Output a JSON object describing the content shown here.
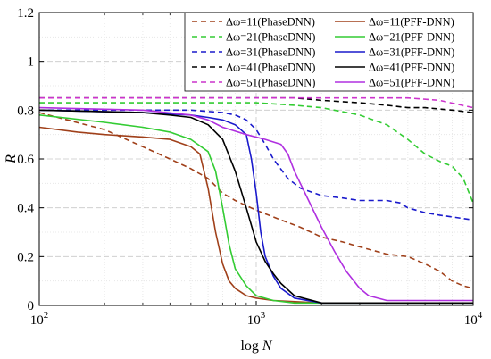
{
  "chart_data": {
    "type": "line",
    "xlabel": "log N",
    "xlabel_prefix": "log ",
    "xlabel_var": "N",
    "ylabel": "R",
    "x_scale": "log",
    "xlim": [
      100,
      10000
    ],
    "ylim": [
      0,
      1.2
    ],
    "grid": true,
    "legend_position": "top-right",
    "x_ticks": [
      {
        "value": 100,
        "base": "10",
        "exp": "2"
      },
      {
        "value": 1000,
        "base": "10",
        "exp": "3"
      },
      {
        "value": 10000,
        "base": "10",
        "exp": "4"
      }
    ],
    "y_ticks": [
      {
        "value": 0,
        "label": "0"
      },
      {
        "value": 0.2,
        "label": "0.2"
      },
      {
        "value": 0.4,
        "label": "0.4"
      },
      {
        "value": 0.6,
        "label": "0.6"
      },
      {
        "value": 0.8,
        "label": "0.8"
      },
      {
        "value": 1.0,
        "label": "1"
      },
      {
        "value": 1.2,
        "label": "1.2"
      }
    ],
    "series": [
      {
        "name": "Δω=11(PhaseDNN)",
        "color": "#a0401a",
        "dash": "dashed",
        "points": [
          [
            100,
            0.79
          ],
          [
            200,
            0.72
          ],
          [
            300,
            0.65
          ],
          [
            400,
            0.6
          ],
          [
            500,
            0.56
          ],
          [
            600,
            0.52
          ],
          [
            700,
            0.46
          ],
          [
            800,
            0.43
          ],
          [
            1000,
            0.39
          ],
          [
            1300,
            0.35
          ],
          [
            1600,
            0.32
          ],
          [
            2000,
            0.28
          ],
          [
            2500,
            0.26
          ],
          [
            3000,
            0.24
          ],
          [
            4000,
            0.21
          ],
          [
            5000,
            0.2
          ],
          [
            6000,
            0.17
          ],
          [
            7000,
            0.14
          ],
          [
            8000,
            0.1
          ],
          [
            9000,
            0.08
          ],
          [
            10000,
            0.07
          ]
        ]
      },
      {
        "name": "Δω=21(PhaseDNN)",
        "color": "#33cc33",
        "dash": "dashed",
        "points": [
          [
            100,
            0.83
          ],
          [
            300,
            0.83
          ],
          [
            600,
            0.83
          ],
          [
            1000,
            0.83
          ],
          [
            1500,
            0.82
          ],
          [
            2000,
            0.81
          ],
          [
            3000,
            0.78
          ],
          [
            4000,
            0.74
          ],
          [
            5000,
            0.68
          ],
          [
            6000,
            0.62
          ],
          [
            7000,
            0.59
          ],
          [
            8000,
            0.57
          ],
          [
            9000,
            0.52
          ],
          [
            10000,
            0.42
          ]
        ]
      },
      {
        "name": "Δω=31(PhaseDNN)",
        "color": "#1a1acc",
        "dash": "dashed",
        "points": [
          [
            100,
            0.8
          ],
          [
            300,
            0.8
          ],
          [
            500,
            0.8
          ],
          [
            700,
            0.79
          ],
          [
            800,
            0.78
          ],
          [
            900,
            0.76
          ],
          [
            1000,
            0.72
          ],
          [
            1100,
            0.66
          ],
          [
            1200,
            0.6
          ],
          [
            1400,
            0.52
          ],
          [
            1600,
            0.48
          ],
          [
            2000,
            0.45
          ],
          [
            2500,
            0.44
          ],
          [
            3000,
            0.43
          ],
          [
            3500,
            0.43
          ],
          [
            4000,
            0.43
          ],
          [
            4600,
            0.42
          ],
          [
            5000,
            0.4
          ],
          [
            6000,
            0.38
          ],
          [
            7000,
            0.37
          ],
          [
            10000,
            0.35
          ]
        ]
      },
      {
        "name": "Δω=41(PhaseDNN)",
        "color": "#000000",
        "dash": "dashed",
        "points": [
          [
            100,
            0.85
          ],
          [
            500,
            0.85
          ],
          [
            1000,
            0.85
          ],
          [
            1500,
            0.85
          ],
          [
            2000,
            0.84
          ],
          [
            3000,
            0.83
          ],
          [
            4000,
            0.82
          ],
          [
            5000,
            0.81
          ],
          [
            6000,
            0.81
          ],
          [
            8000,
            0.8
          ],
          [
            10000,
            0.79
          ]
        ]
      },
      {
        "name": "Δω=51(PhaseDNN)",
        "color": "#cc33cc",
        "dash": "dashed",
        "points": [
          [
            100,
            0.85
          ],
          [
            500,
            0.85
          ],
          [
            1000,
            0.85
          ],
          [
            2000,
            0.85
          ],
          [
            3000,
            0.85
          ],
          [
            5000,
            0.85
          ],
          [
            7000,
            0.84
          ],
          [
            10000,
            0.81
          ]
        ]
      },
      {
        "name": "Δω=11(PFF-DNN)",
        "color": "#a0401a",
        "dash": "solid",
        "points": [
          [
            100,
            0.73
          ],
          [
            150,
            0.71
          ],
          [
            200,
            0.7
          ],
          [
            300,
            0.69
          ],
          [
            400,
            0.68
          ],
          [
            500,
            0.65
          ],
          [
            550,
            0.62
          ],
          [
            600,
            0.48
          ],
          [
            650,
            0.3
          ],
          [
            700,
            0.17
          ],
          [
            750,
            0.1
          ],
          [
            800,
            0.07
          ],
          [
            900,
            0.04
          ],
          [
            1000,
            0.03
          ],
          [
            1200,
            0.02
          ],
          [
            2000,
            0.01
          ],
          [
            10000,
            0.01
          ]
        ]
      },
      {
        "name": "Δω=21(PFF-DNN)",
        "color": "#33cc33",
        "dash": "solid",
        "points": [
          [
            100,
            0.78
          ],
          [
            200,
            0.75
          ],
          [
            300,
            0.73
          ],
          [
            400,
            0.71
          ],
          [
            500,
            0.68
          ],
          [
            600,
            0.63
          ],
          [
            650,
            0.55
          ],
          [
            700,
            0.4
          ],
          [
            750,
            0.25
          ],
          [
            800,
            0.15
          ],
          [
            900,
            0.08
          ],
          [
            1000,
            0.04
          ],
          [
            1200,
            0.02
          ],
          [
            1500,
            0.01
          ],
          [
            10000,
            0.01
          ]
        ]
      },
      {
        "name": "Δω=31(PFF-DNN)",
        "color": "#1a1acc",
        "dash": "solid",
        "points": [
          [
            100,
            0.8
          ],
          [
            300,
            0.79
          ],
          [
            500,
            0.78
          ],
          [
            600,
            0.77
          ],
          [
            700,
            0.76
          ],
          [
            800,
            0.74
          ],
          [
            900,
            0.7
          ],
          [
            950,
            0.6
          ],
          [
            1000,
            0.46
          ],
          [
            1050,
            0.3
          ],
          [
            1100,
            0.2
          ],
          [
            1200,
            0.12
          ],
          [
            1300,
            0.07
          ],
          [
            1500,
            0.03
          ],
          [
            2000,
            0.01
          ],
          [
            10000,
            0.01
          ]
        ]
      },
      {
        "name": "Δω=41(PFF-DNN)",
        "color": "#000000",
        "dash": "solid",
        "points": [
          [
            100,
            0.8
          ],
          [
            300,
            0.79
          ],
          [
            400,
            0.78
          ],
          [
            500,
            0.77
          ],
          [
            600,
            0.74
          ],
          [
            700,
            0.68
          ],
          [
            800,
            0.55
          ],
          [
            900,
            0.4
          ],
          [
            1000,
            0.26
          ],
          [
            1100,
            0.18
          ],
          [
            1200,
            0.13
          ],
          [
            1300,
            0.09
          ],
          [
            1500,
            0.04
          ],
          [
            2000,
            0.01
          ],
          [
            3000,
            0.01
          ],
          [
            4000,
            0.01
          ],
          [
            6000,
            0.01
          ],
          [
            10000,
            0.01
          ]
        ]
      },
      {
        "name": "Δω=51(PFF-DNN)",
        "color": "#b030e0",
        "dash": "solid",
        "points": [
          [
            100,
            0.81
          ],
          [
            300,
            0.8
          ],
          [
            500,
            0.78
          ],
          [
            600,
            0.76
          ],
          [
            700,
            0.73
          ],
          [
            900,
            0.7
          ],
          [
            1100,
            0.68
          ],
          [
            1300,
            0.66
          ],
          [
            1400,
            0.62
          ],
          [
            1500,
            0.55
          ],
          [
            1700,
            0.45
          ],
          [
            2000,
            0.32
          ],
          [
            2300,
            0.22
          ],
          [
            2600,
            0.14
          ],
          [
            3000,
            0.07
          ],
          [
            3300,
            0.04
          ],
          [
            4000,
            0.02
          ],
          [
            10000,
            0.02
          ]
        ]
      }
    ]
  }
}
